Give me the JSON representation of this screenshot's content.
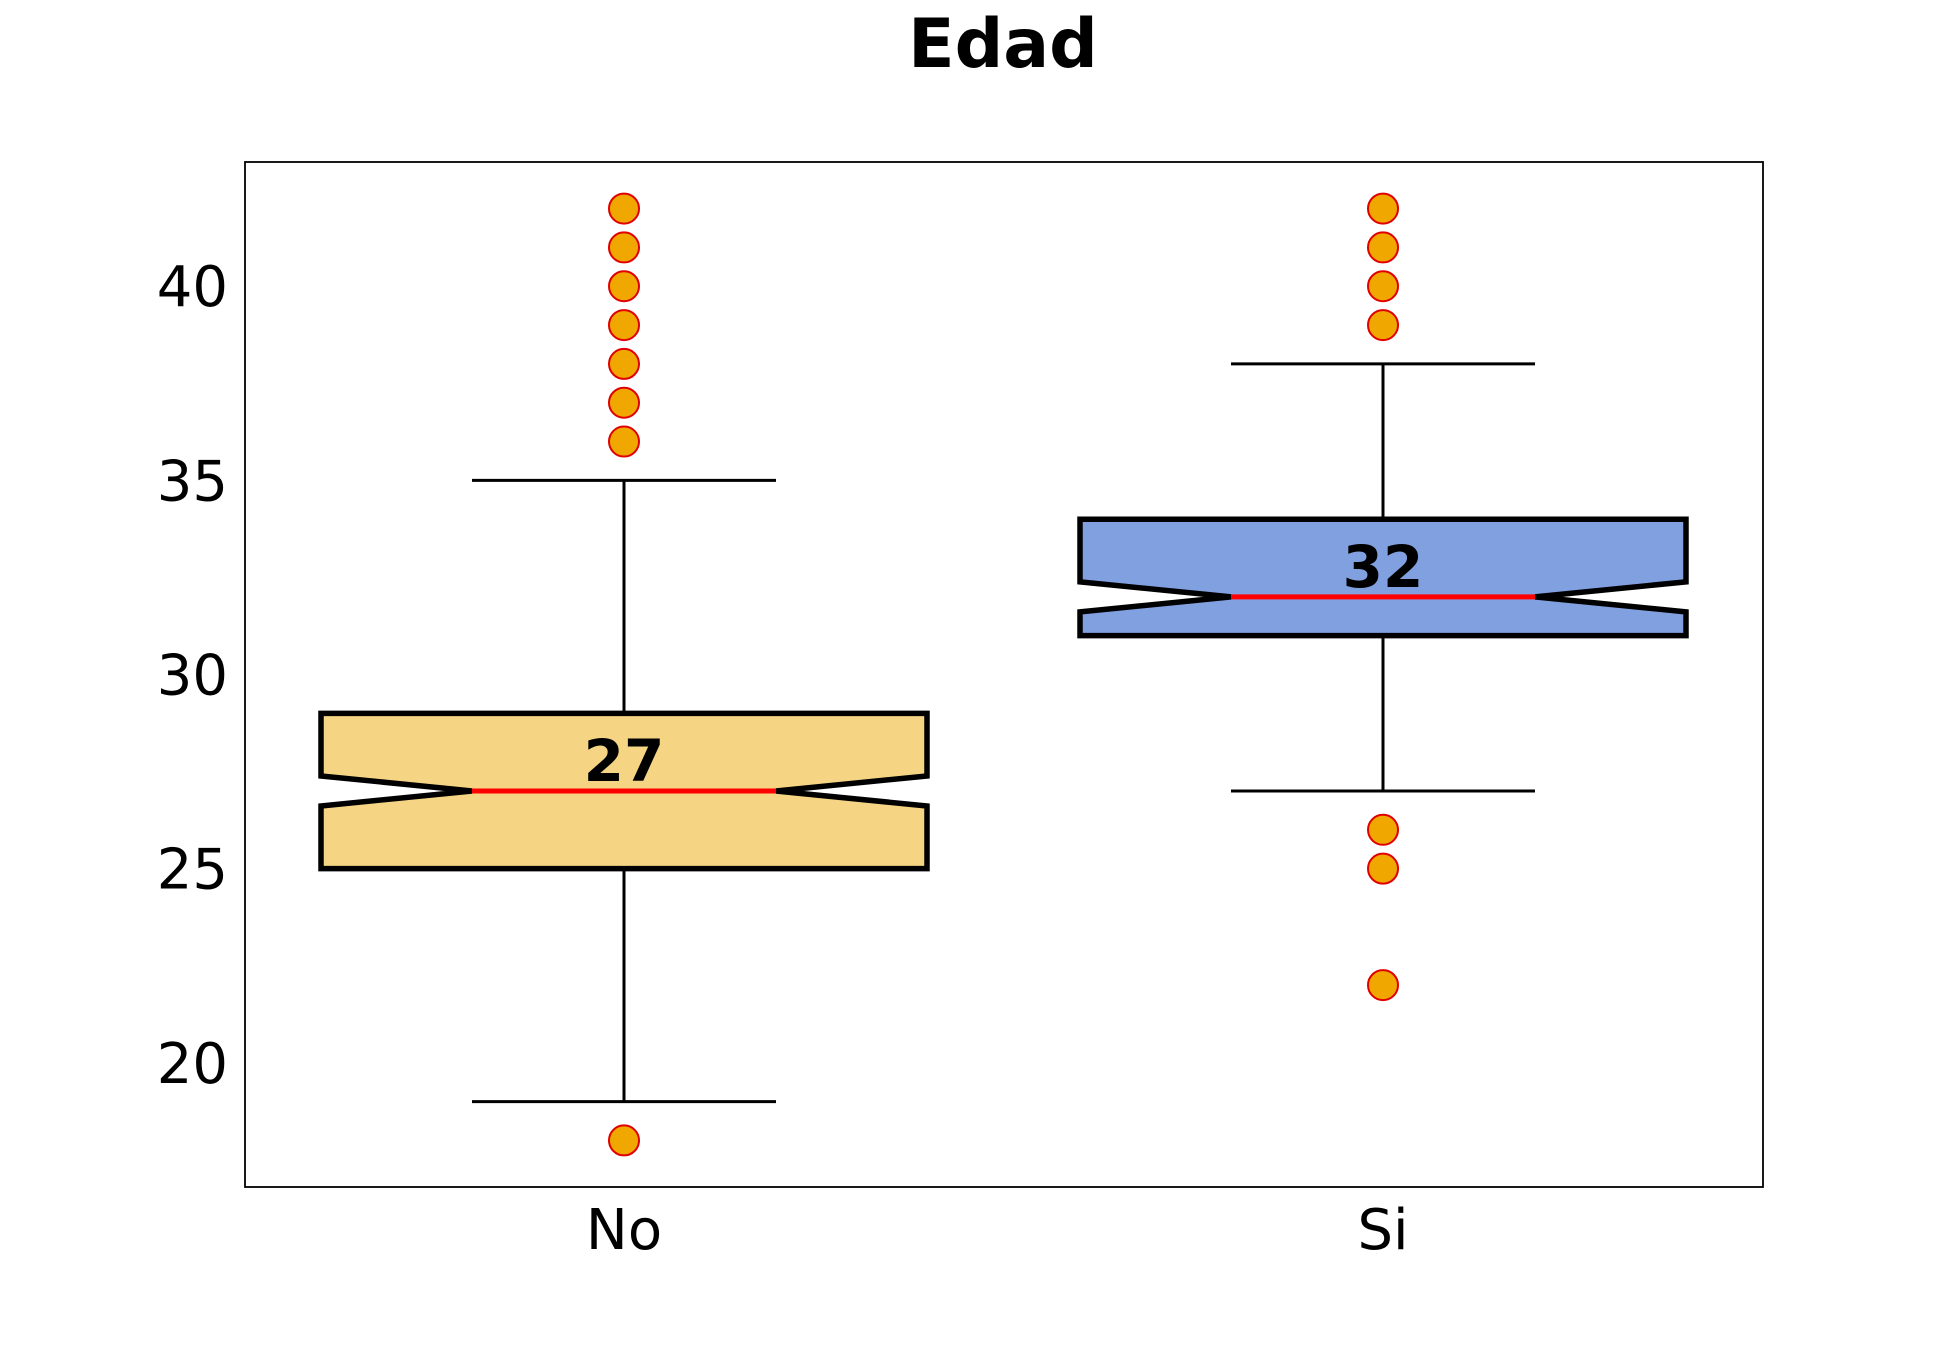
{
  "chart_data": {
    "type": "boxplot",
    "title": "Edad",
    "xlabel": "",
    "ylabel": "",
    "categories": [
      "No",
      "Si"
    ],
    "ylim": [
      16.8,
      43.2
    ],
    "yticks": [
      20,
      25,
      30,
      35,
      40
    ],
    "grid": false,
    "notched": true,
    "colors": {
      "box_fills": [
        "#f5d584",
        "#80a0e0"
      ],
      "median_line": "#ff0000",
      "outlier_fill": "#f0a800",
      "outlier_edge": "#e00000"
    },
    "boxes": [
      {
        "category": "No",
        "whisker_low": 19,
        "q1": 25,
        "median": 27,
        "q3": 29,
        "whisker_high": 35,
        "median_label": "27",
        "outliers": [
          18,
          36,
          37,
          38,
          39,
          40,
          41,
          42
        ]
      },
      {
        "category": "Si",
        "whisker_low": 27,
        "q1": 31,
        "median": 32,
        "q3": 34,
        "whisker_high": 38,
        "median_label": "32",
        "outliers": [
          22,
          25,
          26,
          39,
          40,
          41,
          42
        ]
      }
    ]
  }
}
